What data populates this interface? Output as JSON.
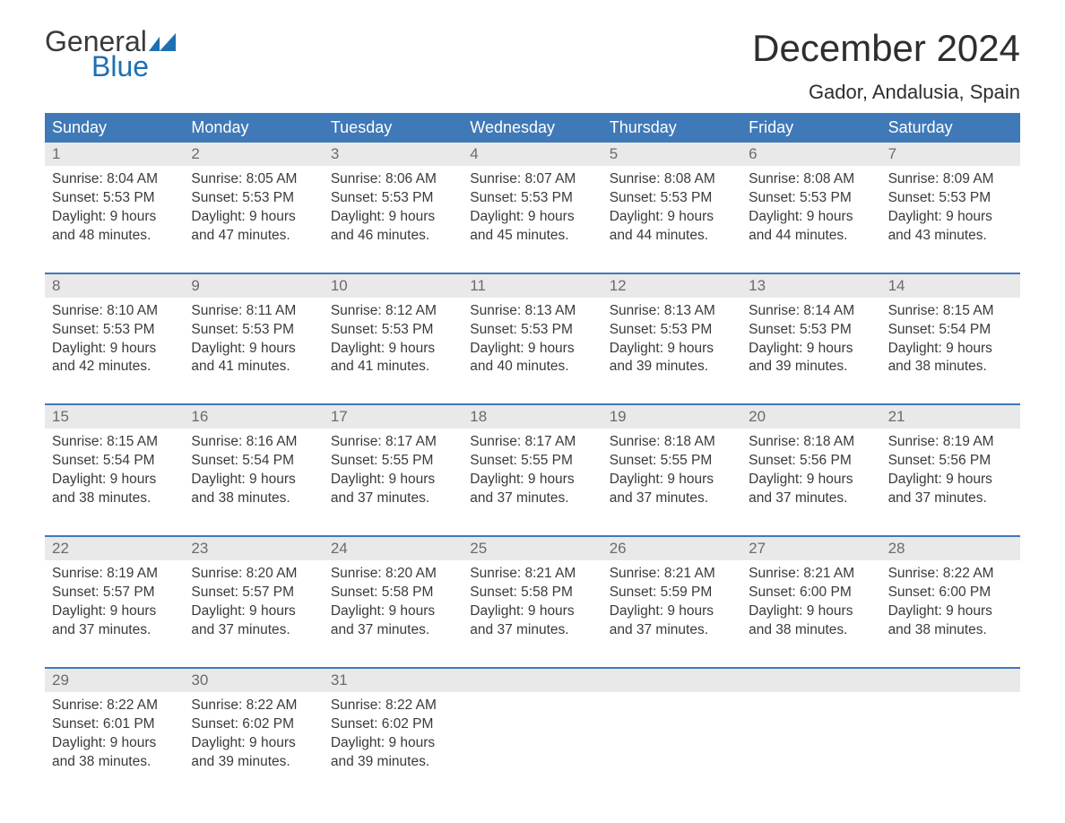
{
  "logo": {
    "word1": "General",
    "word2": "Blue",
    "accent_color": "#1f6fb2",
    "text_color": "#3a3a3a"
  },
  "header": {
    "month_title": "December 2024",
    "location": "Gador, Andalusia, Spain"
  },
  "colors": {
    "dow_bg": "#3f79b7",
    "dow_text": "#ffffff",
    "daynum_bg": "#e9e9e9",
    "daynum_text": "#6b6b6b",
    "rule": "#3f79b7",
    "body_text": "#3a3a3a",
    "background": "#ffffff"
  },
  "fonts": {
    "title_size_pt": 32,
    "location_size_pt": 17,
    "dow_size_pt": 14,
    "cell_size_pt": 12
  },
  "days_of_week": [
    "Sunday",
    "Monday",
    "Tuesday",
    "Wednesday",
    "Thursday",
    "Friday",
    "Saturday"
  ],
  "weeks": [
    [
      {
        "n": "1",
        "sunrise": "Sunrise: 8:04 AM",
        "sunset": "Sunset: 5:53 PM",
        "day1": "Daylight: 9 hours",
        "day2": "and 48 minutes."
      },
      {
        "n": "2",
        "sunrise": "Sunrise: 8:05 AM",
        "sunset": "Sunset: 5:53 PM",
        "day1": "Daylight: 9 hours",
        "day2": "and 47 minutes."
      },
      {
        "n": "3",
        "sunrise": "Sunrise: 8:06 AM",
        "sunset": "Sunset: 5:53 PM",
        "day1": "Daylight: 9 hours",
        "day2": "and 46 minutes."
      },
      {
        "n": "4",
        "sunrise": "Sunrise: 8:07 AM",
        "sunset": "Sunset: 5:53 PM",
        "day1": "Daylight: 9 hours",
        "day2": "and 45 minutes."
      },
      {
        "n": "5",
        "sunrise": "Sunrise: 8:08 AM",
        "sunset": "Sunset: 5:53 PM",
        "day1": "Daylight: 9 hours",
        "day2": "and 44 minutes."
      },
      {
        "n": "6",
        "sunrise": "Sunrise: 8:08 AM",
        "sunset": "Sunset: 5:53 PM",
        "day1": "Daylight: 9 hours",
        "day2": "and 44 minutes."
      },
      {
        "n": "7",
        "sunrise": "Sunrise: 8:09 AM",
        "sunset": "Sunset: 5:53 PM",
        "day1": "Daylight: 9 hours",
        "day2": "and 43 minutes."
      }
    ],
    [
      {
        "n": "8",
        "sunrise": "Sunrise: 8:10 AM",
        "sunset": "Sunset: 5:53 PM",
        "day1": "Daylight: 9 hours",
        "day2": "and 42 minutes."
      },
      {
        "n": "9",
        "sunrise": "Sunrise: 8:11 AM",
        "sunset": "Sunset: 5:53 PM",
        "day1": "Daylight: 9 hours",
        "day2": "and 41 minutes."
      },
      {
        "n": "10",
        "sunrise": "Sunrise: 8:12 AM",
        "sunset": "Sunset: 5:53 PM",
        "day1": "Daylight: 9 hours",
        "day2": "and 41 minutes."
      },
      {
        "n": "11",
        "sunrise": "Sunrise: 8:13 AM",
        "sunset": "Sunset: 5:53 PM",
        "day1": "Daylight: 9 hours",
        "day2": "and 40 minutes."
      },
      {
        "n": "12",
        "sunrise": "Sunrise: 8:13 AM",
        "sunset": "Sunset: 5:53 PM",
        "day1": "Daylight: 9 hours",
        "day2": "and 39 minutes."
      },
      {
        "n": "13",
        "sunrise": "Sunrise: 8:14 AM",
        "sunset": "Sunset: 5:53 PM",
        "day1": "Daylight: 9 hours",
        "day2": "and 39 minutes."
      },
      {
        "n": "14",
        "sunrise": "Sunrise: 8:15 AM",
        "sunset": "Sunset: 5:54 PM",
        "day1": "Daylight: 9 hours",
        "day2": "and 38 minutes."
      }
    ],
    [
      {
        "n": "15",
        "sunrise": "Sunrise: 8:15 AM",
        "sunset": "Sunset: 5:54 PM",
        "day1": "Daylight: 9 hours",
        "day2": "and 38 minutes."
      },
      {
        "n": "16",
        "sunrise": "Sunrise: 8:16 AM",
        "sunset": "Sunset: 5:54 PM",
        "day1": "Daylight: 9 hours",
        "day2": "and 38 minutes."
      },
      {
        "n": "17",
        "sunrise": "Sunrise: 8:17 AM",
        "sunset": "Sunset: 5:55 PM",
        "day1": "Daylight: 9 hours",
        "day2": "and 37 minutes."
      },
      {
        "n": "18",
        "sunrise": "Sunrise: 8:17 AM",
        "sunset": "Sunset: 5:55 PM",
        "day1": "Daylight: 9 hours",
        "day2": "and 37 minutes."
      },
      {
        "n": "19",
        "sunrise": "Sunrise: 8:18 AM",
        "sunset": "Sunset: 5:55 PM",
        "day1": "Daylight: 9 hours",
        "day2": "and 37 minutes."
      },
      {
        "n": "20",
        "sunrise": "Sunrise: 8:18 AM",
        "sunset": "Sunset: 5:56 PM",
        "day1": "Daylight: 9 hours",
        "day2": "and 37 minutes."
      },
      {
        "n": "21",
        "sunrise": "Sunrise: 8:19 AM",
        "sunset": "Sunset: 5:56 PM",
        "day1": "Daylight: 9 hours",
        "day2": "and 37 minutes."
      }
    ],
    [
      {
        "n": "22",
        "sunrise": "Sunrise: 8:19 AM",
        "sunset": "Sunset: 5:57 PM",
        "day1": "Daylight: 9 hours",
        "day2": "and 37 minutes."
      },
      {
        "n": "23",
        "sunrise": "Sunrise: 8:20 AM",
        "sunset": "Sunset: 5:57 PM",
        "day1": "Daylight: 9 hours",
        "day2": "and 37 minutes."
      },
      {
        "n": "24",
        "sunrise": "Sunrise: 8:20 AM",
        "sunset": "Sunset: 5:58 PM",
        "day1": "Daylight: 9 hours",
        "day2": "and 37 minutes."
      },
      {
        "n": "25",
        "sunrise": "Sunrise: 8:21 AM",
        "sunset": "Sunset: 5:58 PM",
        "day1": "Daylight: 9 hours",
        "day2": "and 37 minutes."
      },
      {
        "n": "26",
        "sunrise": "Sunrise: 8:21 AM",
        "sunset": "Sunset: 5:59 PM",
        "day1": "Daylight: 9 hours",
        "day2": "and 37 minutes."
      },
      {
        "n": "27",
        "sunrise": "Sunrise: 8:21 AM",
        "sunset": "Sunset: 6:00 PM",
        "day1": "Daylight: 9 hours",
        "day2": "and 38 minutes."
      },
      {
        "n": "28",
        "sunrise": "Sunrise: 8:22 AM",
        "sunset": "Sunset: 6:00 PM",
        "day1": "Daylight: 9 hours",
        "day2": "and 38 minutes."
      }
    ],
    [
      {
        "n": "29",
        "sunrise": "Sunrise: 8:22 AM",
        "sunset": "Sunset: 6:01 PM",
        "day1": "Daylight: 9 hours",
        "day2": "and 38 minutes."
      },
      {
        "n": "30",
        "sunrise": "Sunrise: 8:22 AM",
        "sunset": "Sunset: 6:02 PM",
        "day1": "Daylight: 9 hours",
        "day2": "and 39 minutes."
      },
      {
        "n": "31",
        "sunrise": "Sunrise: 8:22 AM",
        "sunset": "Sunset: 6:02 PM",
        "day1": "Daylight: 9 hours",
        "day2": "and 39 minutes."
      },
      null,
      null,
      null,
      null
    ]
  ]
}
